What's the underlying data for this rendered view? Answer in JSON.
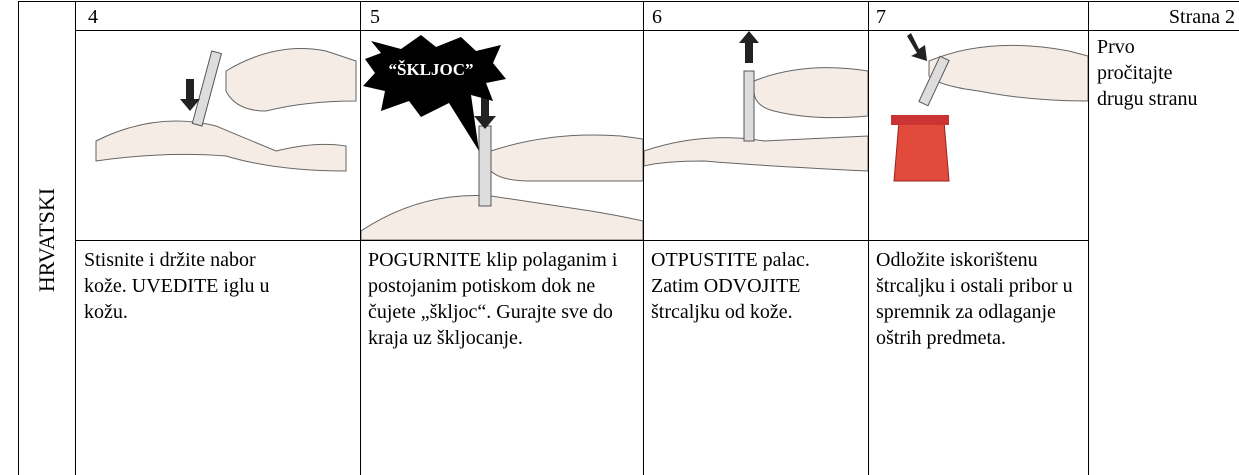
{
  "language": "HRVATSKI",
  "page_label": "Strana 2",
  "note": "Prvo pročitajte drugu stranu",
  "steps": [
    {
      "number": "4",
      "text": "Stisnite i držite nabor kože. UVEDITE iglu u kožu."
    },
    {
      "number": "5",
      "callout": "“ŠKLJOC”",
      "text": "POGURNITE klip polaganim i postojanim potiskom dok ne čujete „škljoc“. Gurajte sve do kraja uz škljocanje."
    },
    {
      "number": "6",
      "text": "OTPUSTITE palac. Zatim ODVOJITE štrcaljku od kože."
    },
    {
      "number": "7",
      "text": "Odložite iskorištenu štrcaljku i ostali pribor u spremnik za odlaganje oštrih predmeta."
    }
  ]
}
